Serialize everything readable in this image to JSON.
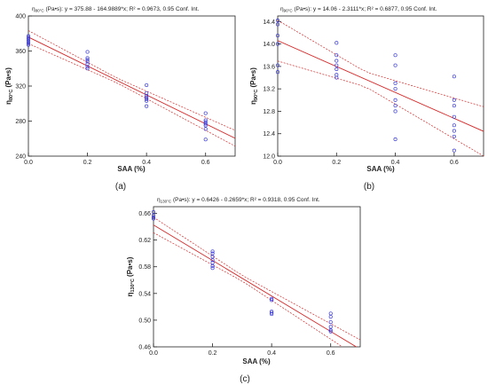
{
  "colors": {
    "points": "#3a3ad8",
    "line": "#d42a2a",
    "ci": "#d42a2a",
    "axis": "#222222"
  },
  "chart_data": [
    {
      "type": "scatter",
      "panel_label": "(a)",
      "title_parts": {
        "sym": "η",
        "sub": "80°C",
        "rest": " (Pa•s):  y = 375.88 - 164.9889*x; R² = 0.9673, 0.95 Conf. Int."
      },
      "ylabel_parts": {
        "sym": "η",
        "sub": "80°C",
        "rest": " (Pa•s)"
      },
      "xlabel": "SAA (%)",
      "xlim": [
        0,
        0.7
      ],
      "ylim": [
        240,
        400
      ],
      "xticks": [
        0.0,
        0.2,
        0.4,
        0.6
      ],
      "xtick_labels": [
        "0.0",
        "0.2",
        "0.4",
        "0.6"
      ],
      "yticks": [
        240,
        280,
        320,
        360,
        400
      ],
      "ytick_labels": [
        "240",
        "280",
        "320",
        "360",
        "400"
      ],
      "fit": {
        "intercept": 375.88,
        "slope": -164.9889,
        "ci": 4.5
      },
      "points": [
        [
          0,
          377
        ],
        [
          0,
          375
        ],
        [
          0,
          373
        ],
        [
          0,
          371
        ],
        [
          0,
          369
        ],
        [
          0,
          367
        ],
        [
          0.2,
          359
        ],
        [
          0.2,
          352
        ],
        [
          0.2,
          350
        ],
        [
          0.2,
          348
        ],
        [
          0.2,
          345
        ],
        [
          0.2,
          342
        ],
        [
          0.2,
          340
        ],
        [
          0.4,
          321
        ],
        [
          0.4,
          312
        ],
        [
          0.4,
          309
        ],
        [
          0.4,
          307
        ],
        [
          0.4,
          305
        ],
        [
          0.4,
          303
        ],
        [
          0.4,
          297
        ],
        [
          0.6,
          289
        ],
        [
          0.6,
          281
        ],
        [
          0.6,
          279
        ],
        [
          0.6,
          277
        ],
        [
          0.6,
          275
        ],
        [
          0.6,
          271
        ],
        [
          0.6,
          259
        ]
      ],
      "grid": false
    },
    {
      "type": "scatter",
      "panel_label": "(b)",
      "title_parts": {
        "sym": "η",
        "sub": "90°C",
        "rest": " (Pa•s):  y = 14.06 - 2.3111*x; R² = 0.6877, 0.95 Conf. Int."
      },
      "ylabel_parts": {
        "sym": "η",
        "sub": "90°C",
        "rest": " (Pa•s)"
      },
      "xlabel": "SAA (%)",
      "xlim": [
        0,
        0.7
      ],
      "ylim": [
        12.0,
        14.5
      ],
      "xticks": [
        0.0,
        0.2,
        0.4,
        0.6
      ],
      "xtick_labels": [
        "0.0",
        "0.2",
        "0.4",
        "0.6"
      ],
      "yticks": [
        12.0,
        12.4,
        12.8,
        13.2,
        13.6,
        14.0,
        14.4
      ],
      "ytick_labels": [
        "12.0",
        "12.4",
        "12.8",
        "13.2",
        "13.6",
        "14.0",
        "14.4"
      ],
      "fit": {
        "intercept": 14.06,
        "slope": -2.3111,
        "ci": 0.22
      },
      "points": [
        [
          0,
          14.42
        ],
        [
          0,
          14.35
        ],
        [
          0,
          14.15
        ],
        [
          0,
          14.0
        ],
        [
          0,
          13.62
        ],
        [
          0,
          13.5
        ],
        [
          0.2,
          14.02
        ],
        [
          0.2,
          13.8
        ],
        [
          0.2,
          13.7
        ],
        [
          0.2,
          13.62
        ],
        [
          0.2,
          13.55
        ],
        [
          0.2,
          13.45
        ],
        [
          0.2,
          13.4
        ],
        [
          0.4,
          13.8
        ],
        [
          0.4,
          13.62
        ],
        [
          0.4,
          13.3
        ],
        [
          0.4,
          13.2
        ],
        [
          0.4,
          13.0
        ],
        [
          0.4,
          12.9
        ],
        [
          0.4,
          12.8
        ],
        [
          0.4,
          12.3
        ],
        [
          0.6,
          13.42
        ],
        [
          0.6,
          13.0
        ],
        [
          0.6,
          12.9
        ],
        [
          0.6,
          12.7
        ],
        [
          0.6,
          12.55
        ],
        [
          0.6,
          12.45
        ],
        [
          0.6,
          12.35
        ],
        [
          0.6,
          12.1
        ]
      ],
      "grid": false
    },
    {
      "type": "scatter",
      "panel_label": "(c)",
      "title_parts": {
        "sym": "η",
        "sub": "130°C",
        "rest": " (Pa•s):  y = 0.6426 - 0.2659*x; R² = 0.9318, 0.95 Conf. Int."
      },
      "ylabel_parts": {
        "sym": "η",
        "sub": "130°C",
        "rest": " (Pa•s)"
      },
      "xlabel": "SAA (%)",
      "xlim": [
        0,
        0.7
      ],
      "ylim": [
        0.46,
        0.67
      ],
      "xticks": [
        0.0,
        0.2,
        0.4,
        0.6
      ],
      "xtick_labels": [
        "0.0",
        "0.2",
        "0.4",
        "0.6"
      ],
      "yticks": [
        0.46,
        0.5,
        0.54,
        0.58,
        0.62,
        0.66
      ],
      "ytick_labels": [
        "0.46",
        "0.50",
        "0.54",
        "0.58",
        "0.62",
        "0.66"
      ],
      "fit": {
        "intercept": 0.6426,
        "slope": -0.2659,
        "ci": 0.007
      },
      "points": [
        [
          0,
          0.662
        ],
        [
          0,
          0.657
        ],
        [
          0,
          0.654
        ],
        [
          0,
          0.652
        ],
        [
          0.2,
          0.603
        ],
        [
          0.2,
          0.6
        ],
        [
          0.2,
          0.595
        ],
        [
          0.2,
          0.59
        ],
        [
          0.2,
          0.586
        ],
        [
          0.2,
          0.581
        ],
        [
          0.2,
          0.578
        ],
        [
          0.4,
          0.532
        ],
        [
          0.4,
          0.53
        ],
        [
          0.4,
          0.513
        ],
        [
          0.4,
          0.511
        ],
        [
          0.4,
          0.509
        ],
        [
          0.6,
          0.51
        ],
        [
          0.6,
          0.505
        ],
        [
          0.6,
          0.497
        ],
        [
          0.6,
          0.49
        ],
        [
          0.6,
          0.485
        ],
        [
          0.6,
          0.483
        ]
      ],
      "grid": false
    }
  ]
}
